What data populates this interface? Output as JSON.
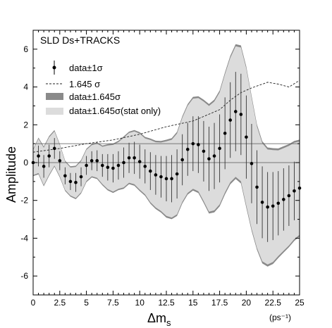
{
  "chart_data": {
    "type": "scatter",
    "title": "SLD Ds+TRACKS",
    "xlabel": "Δm",
    "xlabel_sub": "s",
    "xunit": "(ps⁻¹)",
    "ylabel": "Amplitude",
    "xlim": [
      0,
      25
    ],
    "ylim": [
      -7,
      7
    ],
    "xticks": [
      0,
      2.5,
      5,
      7.5,
      10,
      12.5,
      15,
      17.5,
      20,
      22.5,
      25
    ],
    "xtick_labels": [
      "0",
      "2.5",
      "5",
      "7.5",
      "10",
      "12.5",
      "15",
      "17.5",
      "20",
      "22.5",
      "25"
    ],
    "yticks": [
      -6,
      -4,
      -2,
      0,
      2,
      4,
      6
    ],
    "ytick_labels": [
      "-6",
      "-4",
      "-2",
      "0",
      "2",
      "4",
      "6"
    ],
    "reference_line": 1,
    "legend": [
      {
        "symbol": "point-errorbar",
        "label": "data±1σ"
      },
      {
        "symbol": "dashed-line",
        "label": "1.645 σ"
      },
      {
        "symbol": "dark-band",
        "label": "data±1.645σ"
      },
      {
        "symbol": "light-band",
        "label": "data±1.645σ(stat only)"
      }
    ],
    "colors": {
      "points": "#000000",
      "dark_band": "#8a8a8a",
      "light_band": "#dcdcdc",
      "dashed": "#222222"
    },
    "series": [
      {
        "name": "data±1σ",
        "x": [
          0,
          0.5,
          1,
          1.5,
          2,
          2.5,
          3,
          3.5,
          4,
          4.5,
          5,
          5.5,
          6,
          6.5,
          7,
          7.5,
          8,
          8.5,
          9,
          9.5,
          10,
          10.5,
          11,
          11.5,
          12,
          12.5,
          13,
          13.5,
          14,
          14.5,
          15,
          15.5,
          16,
          16.5,
          17,
          17.5,
          18,
          18.5,
          19,
          19.5,
          20,
          20.5,
          21,
          21.5,
          22,
          22.5,
          23,
          23.5,
          24,
          24.5,
          25
        ],
        "y": [
          0.0,
          0.35,
          -0.2,
          0.35,
          0.75,
          0.1,
          -0.7,
          -1.0,
          -1.05,
          -0.75,
          -0.15,
          0.1,
          0.1,
          -0.15,
          -0.25,
          -0.3,
          -0.15,
          0.0,
          0.25,
          0.25,
          0.05,
          -0.2,
          -0.45,
          -0.65,
          -0.75,
          -0.85,
          -0.85,
          -0.6,
          0.15,
          0.7,
          1.0,
          0.95,
          0.6,
          0.2,
          0.35,
          0.75,
          1.55,
          2.25,
          2.7,
          2.55,
          1.35,
          -0.05,
          -1.3,
          -2.1,
          -2.35,
          -2.3,
          -2.15,
          -1.95,
          -1.75,
          -1.5,
          -1.35
        ],
        "err": [
          0.4,
          0.55,
          0.6,
          0.6,
          0.55,
          0.5,
          0.45,
          0.45,
          0.5,
          0.5,
          0.5,
          0.5,
          0.55,
          0.6,
          0.7,
          0.75,
          0.75,
          0.8,
          0.8,
          0.85,
          0.9,
          0.9,
          1.0,
          1.05,
          1.1,
          1.2,
          1.25,
          1.3,
          1.35,
          1.4,
          1.45,
          1.5,
          1.6,
          1.7,
          1.75,
          1.8,
          1.9,
          2.0,
          2.1,
          2.15,
          2.2,
          2.1,
          1.95,
          1.9,
          1.85,
          1.8,
          1.7,
          1.65,
          1.6,
          1.55,
          1.5
        ]
      },
      {
        "name": "1.645 σ",
        "x": [
          0,
          2.5,
          5,
          7.5,
          10,
          12.5,
          15,
          17.5,
          18.5,
          19.5,
          20.5,
          21,
          22,
          23,
          24,
          25
        ],
        "y": [
          0.55,
          0.75,
          1.0,
          1.2,
          1.5,
          1.9,
          2.2,
          2.8,
          3.3,
          3.7,
          3.95,
          4.05,
          4.25,
          4.15,
          4.0,
          4.35
        ]
      }
    ]
  }
}
